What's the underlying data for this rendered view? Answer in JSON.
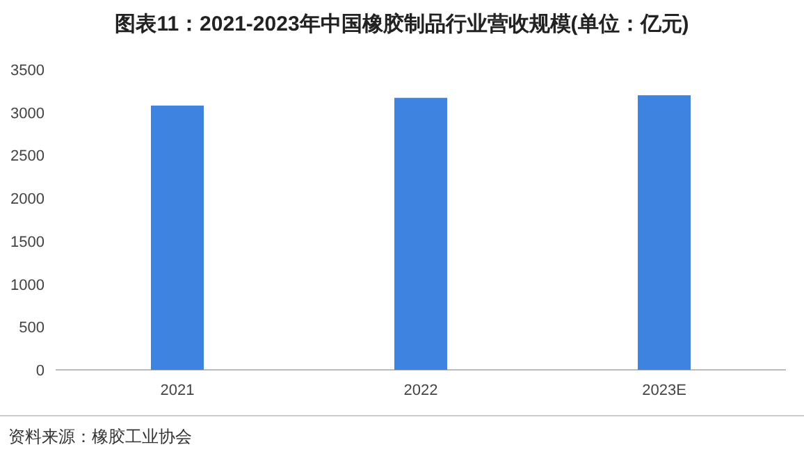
{
  "chart_data": {
    "type": "bar",
    "title": "图表11：2021-2023年中国橡胶制品行业营收规模(单位：亿元)",
    "categories": [
      "2021",
      "2022",
      "2023E"
    ],
    "values": [
      3080,
      3170,
      3200
    ],
    "color": "#3f83e0",
    "ylim": [
      0,
      3500
    ],
    "yticks": [
      0,
      500,
      1000,
      1500,
      2000,
      2500,
      3000,
      3500
    ],
    "grid": false,
    "annotations": [
      "资料来源：橡胶工业协会"
    ]
  }
}
